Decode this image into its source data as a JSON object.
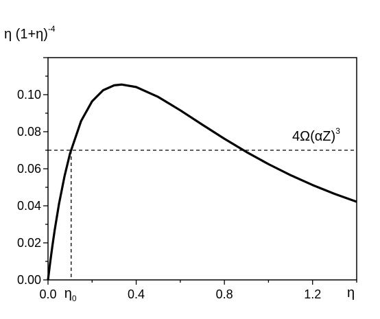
{
  "chart_data": {
    "type": "line",
    "ylabel": {
      "main": "η (1+η)",
      "exp": "-4"
    },
    "xlabel": "η",
    "xlim": [
      0,
      1.4
    ],
    "ylim": [
      0,
      0.12
    ],
    "x_ticks": [
      {
        "value": 0.0,
        "label": "0.0"
      },
      {
        "value": 0.4,
        "label": "0.4"
      },
      {
        "value": 0.8,
        "label": "0.8"
      },
      {
        "value": 1.2,
        "label": "1.2"
      }
    ],
    "y_ticks": [
      {
        "value": 0.0,
        "label": "0.00"
      },
      {
        "value": 0.02,
        "label": "0.02"
      },
      {
        "value": 0.04,
        "label": "0.04"
      },
      {
        "value": 0.06,
        "label": "0.06"
      },
      {
        "value": 0.08,
        "label": "0.08"
      },
      {
        "value": 0.1,
        "label": "0.10"
      }
    ],
    "series": [
      {
        "function": "η (1+η)^-4",
        "x": [
          0,
          0.005,
          0.01,
          0.02,
          0.03,
          0.05,
          0.075,
          0.1,
          0.15,
          0.2,
          0.25,
          0.3,
          0.3333,
          0.4,
          0.5,
          0.6,
          0.7,
          0.8,
          0.9,
          1.0,
          1.1,
          1.2,
          1.3,
          1.4
        ],
        "values": [
          0,
          0.0049,
          0.00961,
          0.01848,
          0.02665,
          0.04114,
          0.05604,
          0.0683,
          0.08576,
          0.09645,
          0.1024,
          0.10504,
          0.10547,
          0.10412,
          0.09877,
          0.09155,
          0.0838,
          0.0762,
          0.06906,
          0.0625,
          0.05656,
          0.05122,
          0.04644,
          0.04217
        ]
      }
    ],
    "hline": {
      "y": 0.07,
      "style": "dashed",
      "label_main": "4Ω(αZ)",
      "label_exp": "3"
    },
    "eta0": {
      "x": 0.105,
      "label_main": "η",
      "label_sub": "0"
    }
  }
}
